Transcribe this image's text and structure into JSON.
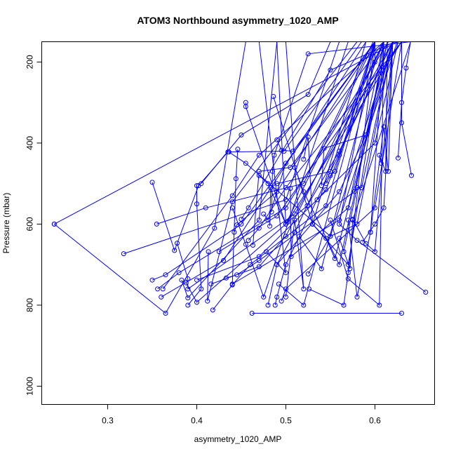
{
  "chart_data": {
    "type": "line",
    "title": "ATOM3 Northbound asymmetry_1020_AMP",
    "xlabel": "asymmetry_1020_AMP",
    "ylabel": "Pressure (mbar)",
    "xlim": [
      0.226,
      0.667
    ],
    "ylim": [
      1045,
      150
    ],
    "y_reversed": true,
    "x_ticks": [
      0.3,
      0.4,
      0.5,
      0.6
    ],
    "x_tick_labels": [
      "0.3",
      "0.4",
      "0.5",
      "0.6"
    ],
    "y_ticks": [
      200,
      400,
      600,
      800,
      1000
    ],
    "y_tick_labels": [
      "200",
      "400",
      "600",
      "800",
      "1000"
    ],
    "series_color": "#0000ff",
    "grid": false,
    "legend": "none",
    "series": [
      {
        "x": [
          0.355,
          0.41,
          0.52,
          0.598
        ],
        "y": [
          600,
          560,
          500,
          150
        ]
      },
      {
        "x": [
          0.24,
          0.365,
          0.42,
          0.455
        ],
        "y": [
          600,
          820,
          610,
          150
        ]
      },
      {
        "x": [
          0.24,
          0.625,
          0.64
        ],
        "y": [
          600,
          150,
          150
        ]
      },
      {
        "x": [
          0.318,
          0.5,
          0.56
        ],
        "y": [
          673,
          540,
          150
        ]
      },
      {
        "x": [
          0.35,
          0.375,
          0.402,
          0.435,
          0.498,
          0.585
        ],
        "y": [
          497,
          665,
          505,
          422,
          420,
          150
        ]
      },
      {
        "x": [
          0.35,
          0.365,
          0.45,
          0.6
        ],
        "y": [
          738,
          725,
          600,
          150
        ]
      },
      {
        "x": [
          0.356,
          0.38,
          0.5,
          0.615
        ],
        "y": [
          760,
          720,
          560,
          150
        ]
      },
      {
        "x": [
          0.36,
          0.43,
          0.59
        ],
        "y": [
          780,
          690,
          150
        ]
      },
      {
        "x": [
          0.362,
          0.44,
          0.47,
          0.61
        ],
        "y": [
          760,
          530,
          430,
          150
        ]
      },
      {
        "x": [
          0.378,
          0.39,
          0.39,
          0.51,
          0.62
        ],
        "y": [
          647,
          735,
          760,
          575,
          150
        ]
      },
      {
        "x": [
          0.383,
          0.39,
          0.47,
          0.49
        ],
        "y": [
          738,
          782,
          590,
          150
        ]
      },
      {
        "x": [
          0.388,
          0.4,
          0.5,
          0.63
        ],
        "y": [
          745,
          793,
          600,
          150
        ]
      },
      {
        "x": [
          0.4,
          0.4,
          0.405,
          0.39
        ],
        "y": [
          505,
          550,
          760,
          800
        ]
      },
      {
        "x": [
          0.4,
          0.47,
          0.6,
          0.626
        ],
        "y": [
          738,
          680,
          400,
          150
        ]
      },
      {
        "x": [
          0.405,
          0.45,
          0.525,
          0.55
        ],
        "y": [
          500,
          380,
          280,
          150
        ]
      },
      {
        "x": [
          0.413,
          0.412,
          0.44,
          0.58
        ],
        "y": [
          668,
          790,
          545,
          150
        ]
      },
      {
        "x": [
          0.416,
          0.47,
          0.5,
          0.61
        ],
        "y": [
          748,
          705,
          630,
          150
        ]
      },
      {
        "x": [
          0.418,
          0.44,
          0.46,
          0.545,
          0.6
        ],
        "y": [
          812,
          750,
          700,
          555,
          150
        ]
      },
      {
        "x": [
          0.425,
          0.49,
          0.63
        ],
        "y": [
          668,
          580,
          150
        ]
      },
      {
        "x": [
          0.433,
          0.445,
          0.47,
          0.577,
          0.614
        ],
        "y": [
          733,
          725,
          690,
          520,
          150
        ]
      },
      {
        "x": [
          0.436,
          0.455,
          0.55,
          0.62
        ],
        "y": [
          422,
          450,
          630,
          150
        ]
      },
      {
        "x": [
          0.44,
          0.455,
          0.475,
          0.57
        ],
        "y": [
          560,
          650,
          780,
          150
        ]
      },
      {
        "x": [
          0.442,
          0.445,
          0.49,
          0.6
        ],
        "y": [
          620,
          602,
          520,
          150
        ]
      },
      {
        "x": [
          0.446,
          0.444,
          0.44,
          0.56,
          0.625
        ],
        "y": [
          415,
          488,
          748,
          590,
          150
        ]
      },
      {
        "x": [
          0.45,
          0.458,
          0.55,
          0.623
        ],
        "y": [
          588,
          560,
          220,
          150
        ]
      },
      {
        "x": [
          0.455,
          0.455,
          0.5,
          0.6
        ],
        "y": [
          300,
          310,
          600,
          150
        ]
      },
      {
        "x": [
          0.458,
          0.47,
          0.5,
          0.63
        ],
        "y": [
          640,
          610,
          510,
          150
        ]
      },
      {
        "x": [
          0.462,
          0.63
        ],
        "y": [
          820,
          820
        ]
      },
      {
        "x": [
          0.463,
          0.47,
          0.505,
          0.61
        ],
        "y": [
          652,
          470,
          460,
          150
        ]
      },
      {
        "x": [
          0.47,
          0.48,
          0.5,
          0.49
        ],
        "y": [
          480,
          500,
          600,
          150
        ]
      },
      {
        "x": [
          0.475,
          0.48,
          0.5,
          0.6
        ],
        "y": [
          575,
          590,
          450,
          150
        ]
      },
      {
        "x": [
          0.478,
          0.5,
          0.47
        ],
        "y": [
          668,
          720,
          150
        ]
      },
      {
        "x": [
          0.48,
          0.49,
          0.51,
          0.61
        ],
        "y": [
          800,
          700,
          620,
          150
        ]
      },
      {
        "x": [
          0.482,
          0.483,
          0.49,
          0.55,
          0.6
        ],
        "y": [
          605,
          510,
          500,
          470,
          150
        ]
      },
      {
        "x": [
          0.484,
          0.485,
          0.487,
          0.525,
          0.64
        ],
        "y": [
          570,
          470,
          430,
          180,
          150
        ]
      },
      {
        "x": [
          0.486,
          0.53,
          0.57,
          0.61
        ],
        "y": [
          285,
          600,
          700,
          150
        ]
      },
      {
        "x": [
          0.488,
          0.49,
          0.5,
          0.62
        ],
        "y": [
          800,
          780,
          700,
          150
        ]
      },
      {
        "x": [
          0.49,
          0.495,
          0.508,
          0.6
        ],
        "y": [
          392,
          418,
          420,
          150
        ]
      },
      {
        "x": [
          0.49,
          0.56,
          0.59,
          0.614
        ],
        "y": [
          700,
          520,
          380,
          150
        ]
      },
      {
        "x": [
          0.492,
          0.52,
          0.6
        ],
        "y": [
          748,
          800,
          150
        ]
      },
      {
        "x": [
          0.495,
          0.5,
          0.6,
          0.63
        ],
        "y": [
          790,
          760,
          560,
          150
        ]
      },
      {
        "x": [
          0.5,
          0.51,
          0.52,
          0.5
        ],
        "y": [
          780,
          590,
          760,
          150
        ]
      },
      {
        "x": [
          0.502,
          0.524,
          0.56,
          0.62
        ],
        "y": [
          595,
          555,
          420,
          150
        ]
      },
      {
        "x": [
          0.505,
          0.506,
          0.57,
          0.61
        ],
        "y": [
          512,
          680,
          560,
          150
        ]
      },
      {
        "x": [
          0.51,
          0.52,
          0.56,
          0.614
        ],
        "y": [
          460,
          520,
          700,
          150
        ]
      },
      {
        "x": [
          0.515,
          0.54,
          0.6,
          0.6
        ],
        "y": [
          630,
          710,
          200,
          150
        ]
      },
      {
        "x": [
          0.52,
          0.525,
          0.53,
          0.59
        ],
        "y": [
          440,
          385,
          600,
          150
        ]
      },
      {
        "x": [
          0.525,
          0.55,
          0.58,
          0.62
        ],
        "y": [
          723,
          630,
          600,
          150
        ]
      },
      {
        "x": [
          0.526,
          0.565,
          0.57,
          0.6
        ],
        "y": [
          760,
          800,
          720,
          150
        ]
      },
      {
        "x": [
          0.53,
          0.545,
          0.555,
          0.62
        ],
        "y": [
          600,
          635,
          685,
          150
        ]
      },
      {
        "x": [
          0.535,
          0.545,
          0.56,
          0.61
        ],
        "y": [
          540,
          515,
          430,
          150
        ]
      },
      {
        "x": [
          0.54,
          0.543,
          0.59,
          0.62
        ],
        "y": [
          505,
          413,
          380,
          150
        ]
      },
      {
        "x": [
          0.545,
          0.55,
          0.555,
          0.6
        ],
        "y": [
          500,
          480,
          470,
          150
        ]
      },
      {
        "x": [
          0.55,
          0.57,
          0.605,
          0.61
        ],
        "y": [
          590,
          735,
          800,
          150
        ]
      },
      {
        "x": [
          0.56,
          0.572,
          0.575,
          0.64
        ],
        "y": [
          635,
          710,
          590,
          150
        ]
      },
      {
        "x": [
          0.565,
          0.58,
          0.585,
          0.62
        ],
        "y": [
          668,
          510,
          510,
          150
        ]
      },
      {
        "x": [
          0.57,
          0.58,
          0.595,
          0.61
        ],
        "y": [
          590,
          780,
          620,
          150
        ]
      },
      {
        "x": [
          0.575,
          0.59,
          0.6,
          0.62
        ],
        "y": [
          588,
          648,
          668,
          150
        ]
      },
      {
        "x": [
          0.586,
          0.6,
          0.61,
          0.62
        ],
        "y": [
          645,
          600,
          560,
          150
        ]
      },
      {
        "x": [
          0.595,
          0.61,
          0.615,
          0.62
        ],
        "y": [
          620,
          360,
          470,
          150
        ]
      },
      {
        "x": [
          0.607,
          0.605,
          0.612,
          0.614
        ],
        "y": [
          450,
          430,
          470,
          150
        ]
      },
      {
        "x": [
          0.626,
          0.63,
          0.635,
          0.64
        ],
        "y": [
          437,
          300,
          215,
          150
        ]
      },
      {
        "x": [
          0.641,
          0.63,
          0.63
        ],
        "y": [
          480,
          350,
          150
        ]
      },
      {
        "x": [
          0.657,
          0.58,
          0.56,
          0.6
        ],
        "y": [
          768,
          640,
          600,
          150
        ]
      }
    ]
  }
}
